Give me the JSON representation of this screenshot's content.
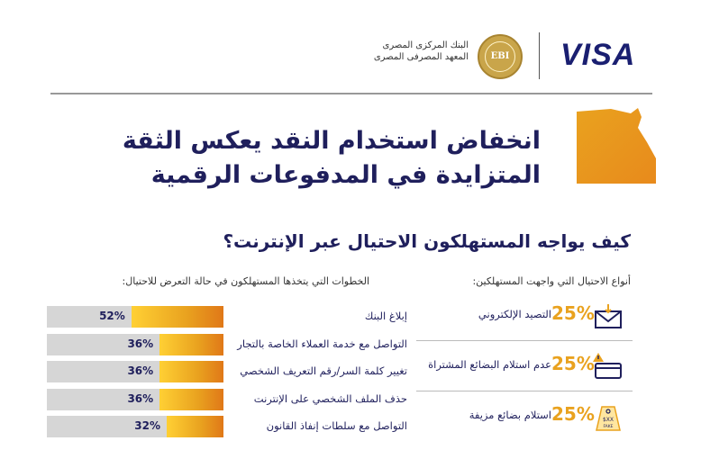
{
  "header": {
    "brand": "VISA",
    "seal_text": "EBI",
    "cbe_line1": "البنك المركزى المصرى",
    "cbe_line2": "المعهد المصرفى المصرى"
  },
  "title_line1": "انخفاض استخدام النقد يعكس الثقة",
  "title_line2": "المتزايدة في المدفوعات الرقمية",
  "subtitle": "كيف يواجه المستهلكون الاحتيال عبر الإنترنت؟",
  "colors": {
    "navy": "#1f1f5c",
    "gold": "#e9a21f",
    "orange": "#e07818",
    "track": "#d6d6d6"
  },
  "chart_data": [
    {
      "type": "bar",
      "title": "الخطوات التي يتخذها المستهلكون في حالة التعرض للاحتيال:",
      "categories": [
        "إبلاغ البنك",
        "التواصل مع خدمة العملاء الخاصة بالتجار",
        "تغيير كلمة السر/رقم التعريف الشخصي",
        "حذف الملف الشخصي على الإنترنت",
        "التواصل مع سلطات إنفاذ القانون"
      ],
      "values": [
        52,
        36,
        36,
        36,
        32
      ],
      "value_labels": [
        "52%",
        "36%",
        "36%",
        "36%",
        "32%"
      ],
      "ylim": [
        0,
        100
      ]
    },
    {
      "type": "table",
      "title": "أنواع الاحتيال التي واجهت المستهلكين:",
      "categories": [
        "التصيد الإلكتروني",
        "عدم استلام البضائع المشتراة",
        "استلام بضائع مزيفة"
      ],
      "values": [
        25,
        25,
        25
      ],
      "value_labels": [
        "25%",
        "25%",
        "25%"
      ],
      "icons": [
        "envelope-hook-icon",
        "credit-card-warning-icon",
        "fake-tag-icon"
      ]
    }
  ]
}
